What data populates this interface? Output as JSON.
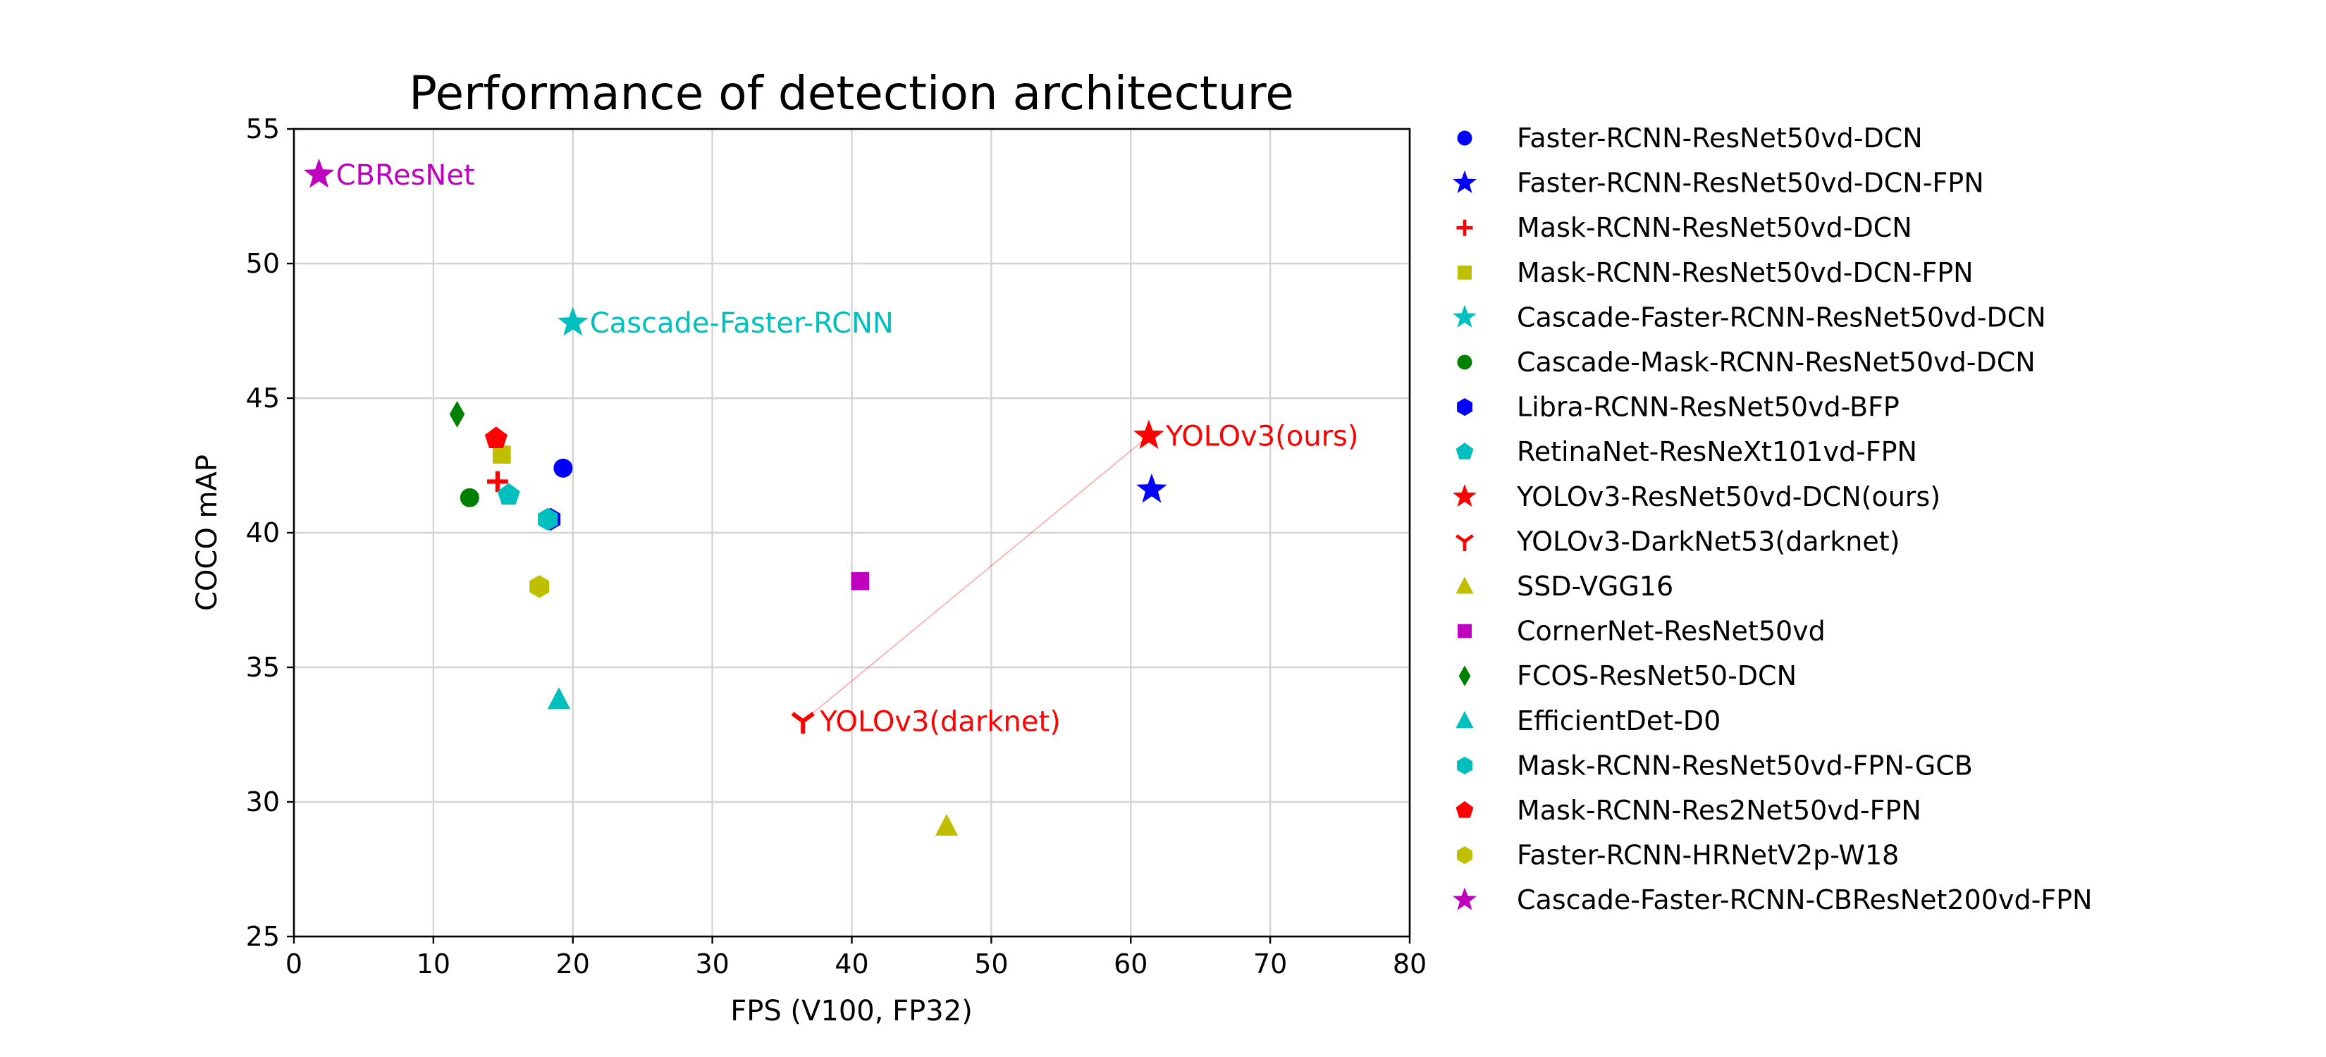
{
  "chart_data": {
    "type": "scatter",
    "title": "Performance of detection architecture",
    "xlabel": "FPS (V100, FP32)",
    "ylabel": "COCO mAP",
    "xlim": [
      0,
      80
    ],
    "ylim": [
      25,
      55
    ],
    "xticks": [
      0,
      10,
      20,
      30,
      40,
      50,
      60,
      70,
      80
    ],
    "yticks": [
      25,
      30,
      35,
      40,
      45,
      50,
      55
    ],
    "grid": true,
    "legend_position": "outside-right",
    "series": [
      {
        "name": "Faster-RCNN-ResNet50vd-DCN",
        "marker": "circle",
        "color": "#0000ff",
        "x": 19.3,
        "y": 42.4
      },
      {
        "name": "Faster-RCNN-ResNet50vd-DCN-FPN",
        "marker": "star",
        "color": "#0000ff",
        "x": 61.5,
        "y": 41.6
      },
      {
        "name": "Mask-RCNN-ResNet50vd-DCN",
        "marker": "plus",
        "color": "#ff0000",
        "x": 14.6,
        "y": 41.9
      },
      {
        "name": "Mask-RCNN-ResNet50vd-DCN-FPN",
        "marker": "square",
        "color": "#bfbf00",
        "x": 14.9,
        "y": 42.9
      },
      {
        "name": "Cascade-Faster-RCNN-ResNet50vd-DCN",
        "marker": "star",
        "color": "#00bfbf",
        "x": 20.0,
        "y": 47.8
      },
      {
        "name": "Cascade-Mask-RCNN-ResNet50vd-DCN",
        "marker": "circle",
        "color": "#008000",
        "x": 12.6,
        "y": 41.3
      },
      {
        "name": "Libra-RCNN-ResNet50vd-BFP",
        "marker": "hexagon",
        "color": "#0000ff",
        "x": 18.4,
        "y": 40.5
      },
      {
        "name": "RetinaNet-ResNeXt101vd-FPN",
        "marker": "pentagon",
        "color": "#00bfbf",
        "x": 15.4,
        "y": 41.4
      },
      {
        "name": "YOLOv3-ResNet50vd-DCN(ours)",
        "marker": "star",
        "color": "#ff0000",
        "x": 61.3,
        "y": 43.6
      },
      {
        "name": "YOLOv3-DarkNet53(darknet)",
        "marker": "tri-down",
        "color": "#ff0000",
        "x": 36.5,
        "y": 33.0
      },
      {
        "name": "SSD-VGG16",
        "marker": "triangle-up",
        "color": "#bfbf00",
        "x": 46.8,
        "y": 29.1
      },
      {
        "name": "CornerNet-ResNet50vd",
        "marker": "square",
        "color": "#bf00bf",
        "x": 40.6,
        "y": 38.2
      },
      {
        "name": "FCOS-ResNet50-DCN",
        "marker": "diamond",
        "color": "#008000",
        "x": 11.7,
        "y": 44.4
      },
      {
        "name": "EfficientDet-D0",
        "marker": "triangle-up",
        "color": "#00bfbf",
        "x": 19.0,
        "y": 33.8
      },
      {
        "name": "Mask-RCNN-ResNet50vd-FPN-GCB",
        "marker": "hexagon",
        "color": "#00bfbf",
        "x": 18.2,
        "y": 40.5
      },
      {
        "name": "Mask-RCNN-Res2Net50vd-FPN",
        "marker": "pentagon",
        "color": "#ff0000",
        "x": 14.5,
        "y": 43.5
      },
      {
        "name": "Faster-RCNN-HRNetV2p-W18",
        "marker": "hexagon",
        "color": "#bfbf00",
        "x": 17.6,
        "y": 38.0
      },
      {
        "name": "Cascade-Faster-RCNN-CBResNet200vd-FPN",
        "marker": "star",
        "color": "#bf00bf",
        "x": 1.8,
        "y": 53.3
      }
    ],
    "annotations": [
      {
        "text": "CBResNet",
        "x": 1.8,
        "y": 53.3,
        "color": "#bf00bf"
      },
      {
        "text": "Cascade-Faster-RCNN",
        "x": 20.0,
        "y": 47.8,
        "color": "#00bfbf"
      },
      {
        "text": "YOLOv3(ours)",
        "x": 61.3,
        "y": 43.6,
        "color": "#ff0000"
      },
      {
        "text": "YOLOv3(darknet)",
        "x": 36.5,
        "y": 33.0,
        "color": "#ff0000"
      }
    ],
    "connector": {
      "from": [
        36.5,
        33.0
      ],
      "to": [
        61.3,
        43.6
      ],
      "color": "#ff0000"
    }
  }
}
